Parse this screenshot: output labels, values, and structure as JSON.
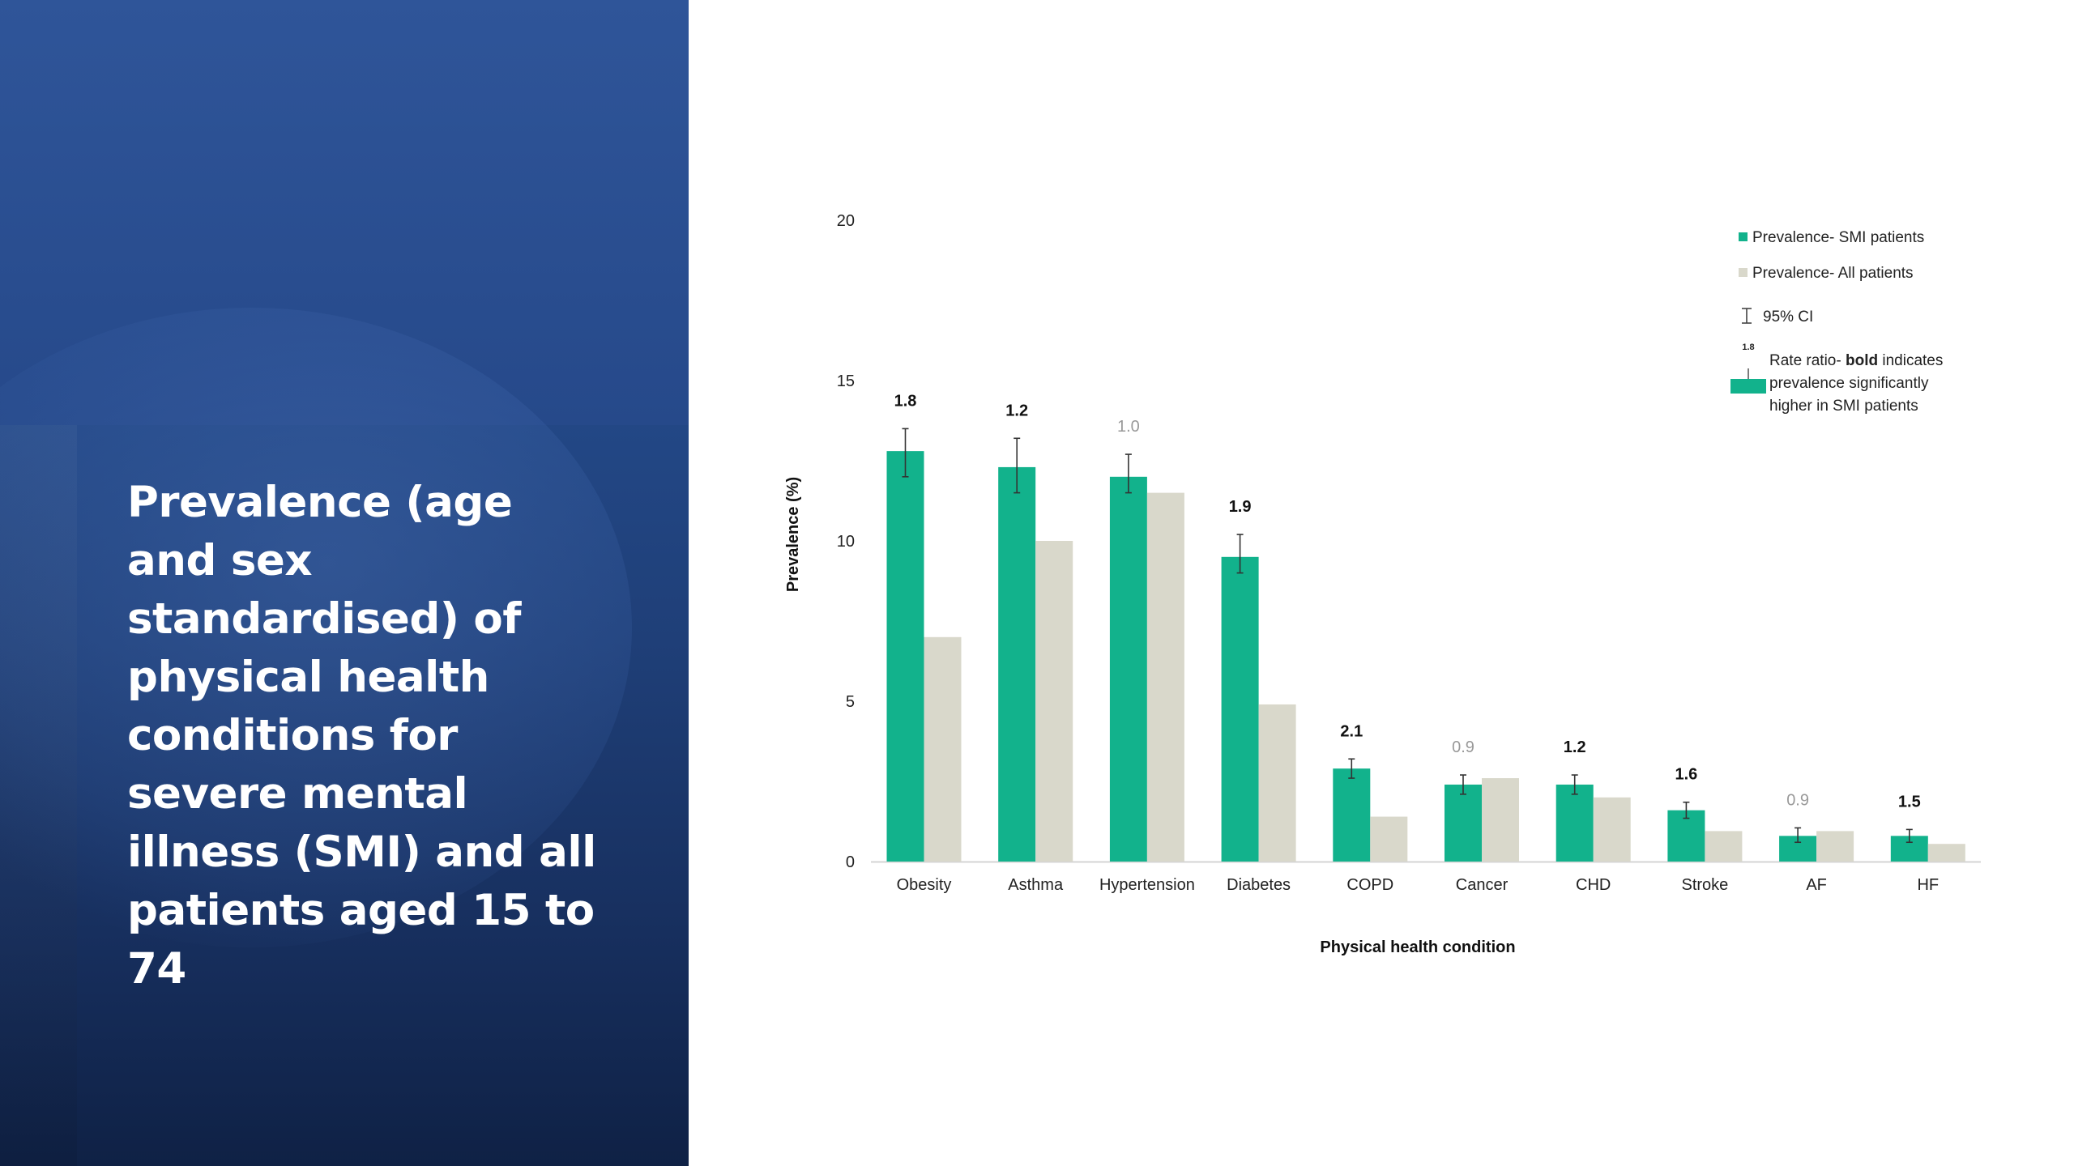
{
  "slide": {
    "title": "Prevalence (age and sex standardised) of physical health conditions for severe mental illness (SMI) and all patients aged 15 to 74"
  },
  "colors": {
    "smi": "#12b28c",
    "all": "#d9d8cb",
    "error_bar": "#333333",
    "rr_bold": "#111111",
    "rr_plain": "#999999",
    "panel": "#23488a"
  },
  "chart_data": {
    "type": "bar",
    "xlabel": "Physical health condition",
    "ylabel": "Prevalence (%)",
    "ylim": [
      0,
      20
    ],
    "yticks": [
      0,
      5,
      10,
      15,
      20
    ],
    "grid": false,
    "categories": [
      "Obesity",
      "Asthma",
      "Hypertension",
      "Diabetes",
      "COPD",
      "Cancer",
      "CHD",
      "Stroke",
      "AF",
      "HF"
    ],
    "series": [
      {
        "name": "Prevalence- SMI patients",
        "values": [
          12.8,
          12.3,
          12.0,
          9.5,
          2.9,
          2.4,
          2.4,
          1.6,
          0.8,
          0.8
        ]
      },
      {
        "name": "Prevalence- All patients",
        "values": [
          7.0,
          10.0,
          11.5,
          4.9,
          1.4,
          2.6,
          2.0,
          0.95,
          0.95,
          0.55
        ]
      }
    ],
    "ci": [
      [
        12.0,
        13.5
      ],
      [
        11.5,
        13.2
      ],
      [
        11.5,
        12.7
      ],
      [
        9.0,
        10.2
      ],
      [
        2.6,
        3.2
      ],
      [
        2.1,
        2.7
      ],
      [
        2.1,
        2.7
      ],
      [
        1.35,
        1.85
      ],
      [
        0.6,
        1.05
      ],
      [
        0.6,
        1.0
      ]
    ],
    "rate_ratios": [
      "1.8",
      "1.2",
      "1.0",
      "1.9",
      "2.1",
      "0.9",
      "1.2",
      "1.6",
      "0.9",
      "1.5"
    ],
    "rate_ratio_bold": [
      true,
      true,
      false,
      true,
      true,
      false,
      true,
      true,
      false,
      true
    ],
    "legend": {
      "position": "top-right",
      "smi": "Prevalence- SMI patients",
      "all": "Prevalence- All patients",
      "ci": "95% CI",
      "rr_sample": "1.8",
      "rr_line1_pre": "Rate ratio- ",
      "rr_line1_bold": "bold",
      "rr_line1_post": " indicates",
      "rr_line2": "prevalence significantly",
      "rr_line3": "higher in SMI patients"
    }
  }
}
